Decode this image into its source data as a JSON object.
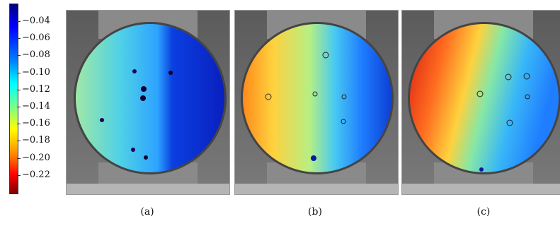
{
  "colorbar": {
    "ticks": [
      "−0.04",
      "−0.06",
      "−0.08",
      "−0.10",
      "−0.12",
      "−0.14",
      "−0.16",
      "−0.18",
      "−0.20",
      "−0.22"
    ],
    "colors": [
      "#00007f",
      "#0000ff",
      "#0080ff",
      "#00ffff",
      "#80ff80",
      "#ffff00",
      "#ff8000",
      "#ff0000",
      "#7f0000"
    ]
  },
  "panels": [
    {
      "caption": "(a)"
    },
    {
      "caption": "(b)"
    },
    {
      "caption": "(c)"
    }
  ]
}
